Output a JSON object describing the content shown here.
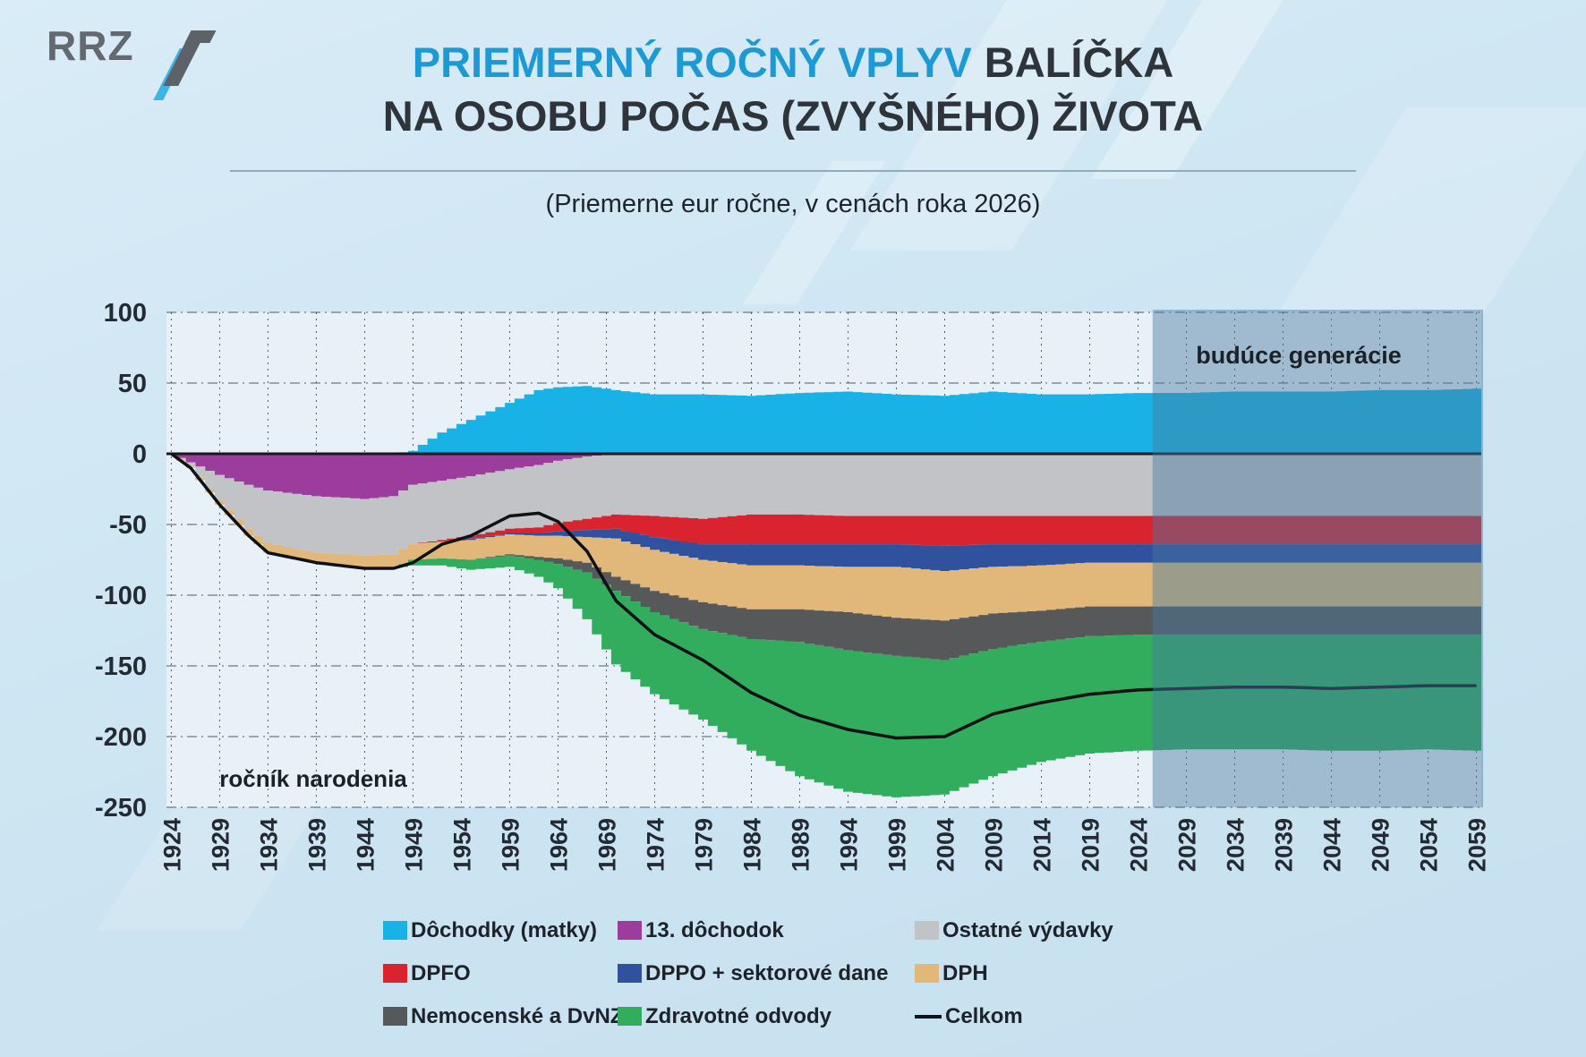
{
  "logo": {
    "text": "RRZ"
  },
  "title": {
    "line1_highlight": "PRIEMERNÝ ROČNÝ VPLYV",
    "line1_rest": "BALÍČKA",
    "line2": "NA OSOBU POČAS (ZVYŠNÉHO) ŽIVOTA"
  },
  "subtitle": "(Priemerne eur ročne, v cenách roka 2026)",
  "annotations": {
    "future_generations": "budúce generácie",
    "x_axis_note": "ročník narodenia"
  },
  "colors": {
    "title_highlight": "#1d9ad3",
    "title_dark": "#2f333a",
    "page_background": "#cfe6f3",
    "plot_background": "#e9f1f8",
    "gridline": "#4f5a64",
    "zero_line": "#14181d",
    "total_line": "#0e1216",
    "future_overlay": "rgba(72,121,158,0.45)",
    "axis_text": "#242a33"
  },
  "legend": {
    "items": [
      {
        "label": "Dôchodky (matky)",
        "color": "#18b2e6",
        "type": "area"
      },
      {
        "label": "13. dôchodok",
        "color": "#9c3d9e",
        "type": "area"
      },
      {
        "label": "Ostatné výdavky",
        "color": "#c2c3c6",
        "type": "area"
      },
      {
        "label": "DPFO",
        "color": "#d92430",
        "type": "area"
      },
      {
        "label": "DPPO + sektorové dane",
        "color": "#30519e",
        "type": "area"
      },
      {
        "label": "DPH",
        "color": "#e2b87a",
        "type": "area"
      },
      {
        "label": "Nemocenské a DvNZ",
        "color": "#57585a",
        "type": "area"
      },
      {
        "label": "Zdravotné odvody",
        "color": "#31ad5d",
        "type": "area"
      },
      {
        "label": "Celkom",
        "color": "#101419",
        "type": "line"
      }
    ]
  },
  "chart_data": {
    "type": "area",
    "stacked": true,
    "title": "Priemerný ročný vplyv balíčka na osobu počas (zvyšného) života",
    "xlabel": "ročník narodenia",
    "ylabel": "Priemerne eur ročne, v cenách roka 2026",
    "x_range": [
      1924,
      2059
    ],
    "ylim": [
      -250,
      100
    ],
    "y_ticks": [
      100,
      50,
      0,
      -50,
      -100,
      -150,
      -200,
      -250
    ],
    "x_tick_years": [
      1924,
      1929,
      1934,
      1939,
      1944,
      1949,
      1954,
      1959,
      1964,
      1969,
      1974,
      1979,
      1984,
      1989,
      1994,
      1999,
      2004,
      2009,
      2014,
      2019,
      2024,
      2029,
      2034,
      2039,
      2044,
      2049,
      2054,
      2059
    ],
    "grid": true,
    "legend_position": "bottom",
    "future_box": {
      "label": "budúce generácie",
      "from_year": 2026,
      "to_year": 2060
    },
    "breakpoint_years": [
      1924,
      1926,
      1929,
      1932,
      1934,
      1939,
      1944,
      1947,
      1949,
      1952,
      1955,
      1959,
      1962,
      1964,
      1967,
      1970,
      1974,
      1979,
      1984,
      1989,
      1994,
      1999,
      2004,
      2009,
      2014,
      2019,
      2024,
      2029,
      2034,
      2039,
      2044,
      2049,
      2054,
      2059
    ],
    "series": [
      {
        "name": "Dôchodky (matky)",
        "color": "#18b2e6",
        "sign": "positive",
        "values": [
          0,
          0,
          0,
          0,
          0,
          0,
          0,
          0,
          2,
          15,
          24,
          36,
          45,
          47,
          48,
          45,
          42,
          42,
          41,
          43,
          44,
          42,
          41,
          44,
          42,
          42,
          43,
          43,
          44,
          44,
          44,
          45,
          45,
          46
        ]
      },
      {
        "name": "13. dôchodok",
        "color": "#9c3d9e",
        "sign": "negative",
        "values": [
          0,
          -6,
          -15,
          -22,
          -26,
          -30,
          -32,
          -30,
          -22,
          -19,
          -16,
          -11,
          -8,
          -5,
          -2,
          0,
          0,
          0,
          0,
          0,
          0,
          0,
          0,
          0,
          0,
          0,
          0,
          0,
          0,
          0,
          0,
          0,
          0,
          0
        ]
      },
      {
        "name": "Ostatné výdavky",
        "color": "#c2c3c6",
        "sign": "negative",
        "values": [
          0,
          -3,
          -18,
          -31,
          -37,
          -40,
          -40,
          -41,
          -42,
          -42,
          -42,
          -42,
          -44,
          -44,
          -44,
          -43,
          -44,
          -46,
          -43,
          -43,
          -44,
          -44,
          -44,
          -44,
          -44,
          -44,
          -44,
          -44,
          -44,
          -44,
          -44,
          -44,
          -44,
          -44
        ]
      },
      {
        "name": "DPFO",
        "color": "#d92430",
        "sign": "negative",
        "values": [
          0,
          0,
          0,
          0,
          0,
          0,
          0,
          0,
          0,
          -1,
          -2,
          -3,
          -4,
          -6,
          -8,
          -10,
          -15,
          -18,
          -21,
          -21,
          -20,
          -20,
          -21,
          -20,
          -20,
          -20,
          -20,
          -20,
          -20,
          -20,
          -20,
          -20,
          -20,
          -20
        ]
      },
      {
        "name": "DPPO + sektorové dane",
        "color": "#30519e",
        "sign": "negative",
        "values": [
          0,
          0,
          0,
          0,
          0,
          0,
          0,
          0,
          0,
          0,
          -1,
          -1,
          -2,
          -3,
          -5,
          -7,
          -9,
          -11,
          -15,
          -15,
          -16,
          -16,
          -18,
          -16,
          -15,
          -13,
          -13,
          -13,
          -13,
          -13,
          -13,
          -13,
          -13,
          -13
        ]
      },
      {
        "name": "DPH",
        "color": "#e2b87a",
        "sign": "negative",
        "values": [
          0,
          -1,
          -3,
          -5,
          -7,
          -7,
          -9,
          -10,
          -11,
          -12,
          -14,
          -14,
          -15,
          -16,
          -18,
          -27,
          -29,
          -30,
          -31,
          -31,
          -32,
          -36,
          -35,
          -33,
          -32,
          -31,
          -31,
          -31,
          -31,
          -31,
          -31,
          -31,
          -31,
          -31
        ]
      },
      {
        "name": "Nemocenské a DvNZ",
        "color": "#57585a",
        "sign": "negative",
        "values": [
          0,
          0,
          0,
          0,
          0,
          0,
          0,
          0,
          0,
          0,
          0,
          -1,
          -2,
          -4,
          -7,
          -10,
          -15,
          -19,
          -21,
          -23,
          -27,
          -27,
          -28,
          -25,
          -22,
          -21,
          -20,
          -20,
          -20,
          -20,
          -20,
          -20,
          -20,
          -20
        ]
      },
      {
        "name": "Zdravotné odvody",
        "color": "#31ad5d",
        "sign": "negative",
        "values": [
          0,
          0,
          0,
          0,
          0,
          0,
          0,
          0,
          -4,
          -5,
          -7,
          -8,
          -12,
          -17,
          -33,
          -52,
          -58,
          -64,
          -79,
          -95,
          -100,
          -100,
          -95,
          -90,
          -85,
          -83,
          -82,
          -81,
          -81,
          -81,
          -82,
          -82,
          -81,
          -82
        ]
      }
    ],
    "total_line": {
      "name": "Celkom",
      "color": "#0e1216",
      "values": [
        0,
        -10,
        -36,
        -58,
        -70,
        -77,
        -81,
        -81,
        -77,
        -64,
        -58,
        -44,
        -42,
        -48,
        -69,
        -104,
        -128,
        -146,
        -169,
        -185,
        -195,
        -201,
        -200,
        -184,
        -176,
        -170,
        -167,
        -166,
        -165,
        -165,
        -166,
        -165,
        -164,
        -164
      ]
    }
  }
}
